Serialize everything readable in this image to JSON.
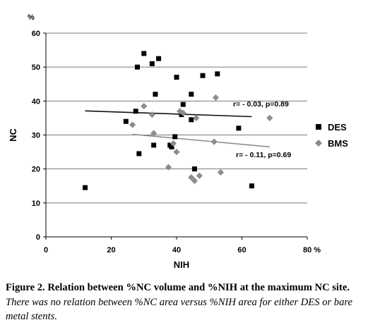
{
  "chart_data": {
    "type": "scatter",
    "xlabel": "NIH",
    "ylabel": "NC",
    "x_unit_label": "%",
    "y_unit_label": "%",
    "xlim": [
      0,
      80
    ],
    "ylim": [
      0,
      60
    ],
    "x_ticks": [
      "0",
      "20",
      "40",
      "60",
      "80 %"
    ],
    "y_ticks": [
      "0",
      "10",
      "20",
      "30",
      "40",
      "50",
      "60"
    ],
    "grid": "horizontal",
    "legend_position": "right",
    "series": [
      {
        "name": "DES",
        "marker": "square",
        "color": "#000000",
        "points": [
          [
            12,
            14.5
          ],
          [
            24.5,
            34
          ],
          [
            27.5,
            37
          ],
          [
            28.5,
            24.5
          ],
          [
            28,
            50
          ],
          [
            30,
            54
          ],
          [
            32.5,
            51
          ],
          [
            33.5,
            42
          ],
          [
            34.5,
            52.5
          ],
          [
            33,
            27
          ],
          [
            38,
            27
          ],
          [
            38.5,
            26.5
          ],
          [
            39.5,
            29.5
          ],
          [
            40,
            47
          ],
          [
            41.5,
            36
          ],
          [
            42,
            39
          ],
          [
            44.5,
            42
          ],
          [
            44.5,
            34.5
          ],
          [
            45.5,
            20
          ],
          [
            48,
            47.5
          ],
          [
            52.5,
            48
          ],
          [
            59,
            32
          ],
          [
            63,
            15
          ]
        ],
        "trend": {
          "x": [
            12,
            63
          ],
          "y": [
            37.1,
            35.4
          ]
        },
        "annotation": "r= - 0.03, p=0.89"
      },
      {
        "name": "BMS",
        "marker": "diamond",
        "color": "#8c8c8c",
        "points": [
          [
            26.5,
            33
          ],
          [
            30,
            38.5
          ],
          [
            32.5,
            36
          ],
          [
            33,
            30.5
          ],
          [
            37.5,
            20.5
          ],
          [
            39,
            27.5
          ],
          [
            40,
            25
          ],
          [
            41,
            37
          ],
          [
            42,
            36.5
          ],
          [
            44.5,
            17.5
          ],
          [
            45.5,
            16.5
          ],
          [
            46,
            35
          ],
          [
            47,
            18
          ],
          [
            51.5,
            28
          ],
          [
            52,
            41
          ],
          [
            53.5,
            19
          ],
          [
            68.5,
            35
          ]
        ],
        "trend": {
          "x": [
            26.5,
            68.5
          ],
          "y": [
            30.2,
            26.5
          ]
        },
        "annotation": "r= - 0.11, p=0.69"
      }
    ]
  },
  "caption": {
    "label": "Figure 2.",
    "title": " Relation between %NC volume and %NIH at the maximum NC site.",
    "body": " There was no relation between %NC area versus %NIH area for either DES or bare metal stents."
  }
}
